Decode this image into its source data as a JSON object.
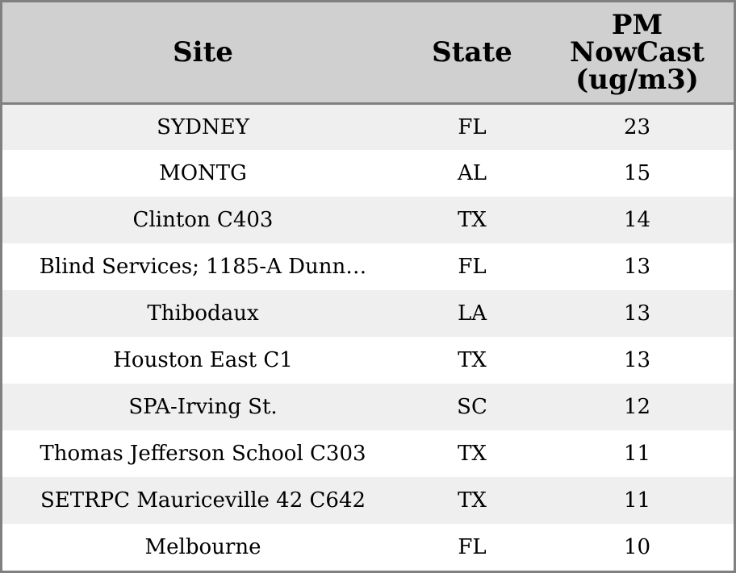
{
  "chart_data": {
    "type": "table",
    "columns": [
      "Site",
      "State",
      "PM NowCast (ug/m3)"
    ],
    "rows": [
      {
        "site": "SYDNEY",
        "state": "FL",
        "pm": "23"
      },
      {
        "site": "MONTG",
        "state": "AL",
        "pm": "15"
      },
      {
        "site": "Clinton C403",
        "state": "TX",
        "pm": "14"
      },
      {
        "site": "Blind Services; 1185-A Dunn…",
        "state": "FL",
        "pm": "13"
      },
      {
        "site": "Thibodaux",
        "state": "LA",
        "pm": "13"
      },
      {
        "site": "Houston East C1",
        "state": "TX",
        "pm": "13"
      },
      {
        "site": "SPA-Irving St.",
        "state": "SC",
        "pm": "12"
      },
      {
        "site": "Thomas Jefferson School C303",
        "state": "TX",
        "pm": "11"
      },
      {
        "site": "SETRPC Mauriceville 42 C642",
        "state": "TX",
        "pm": "11"
      },
      {
        "site": "Melbourne",
        "state": "FL",
        "pm": "10"
      }
    ]
  },
  "header": {
    "site": "Site",
    "state": "State",
    "pm_line1": "PM",
    "pm_line2": "NowCast",
    "pm_line3": "(ug/m3)"
  },
  "colors": {
    "header_bg": "#d0d0d0",
    "stripe_bg": "#efefef",
    "border": "#808080"
  }
}
